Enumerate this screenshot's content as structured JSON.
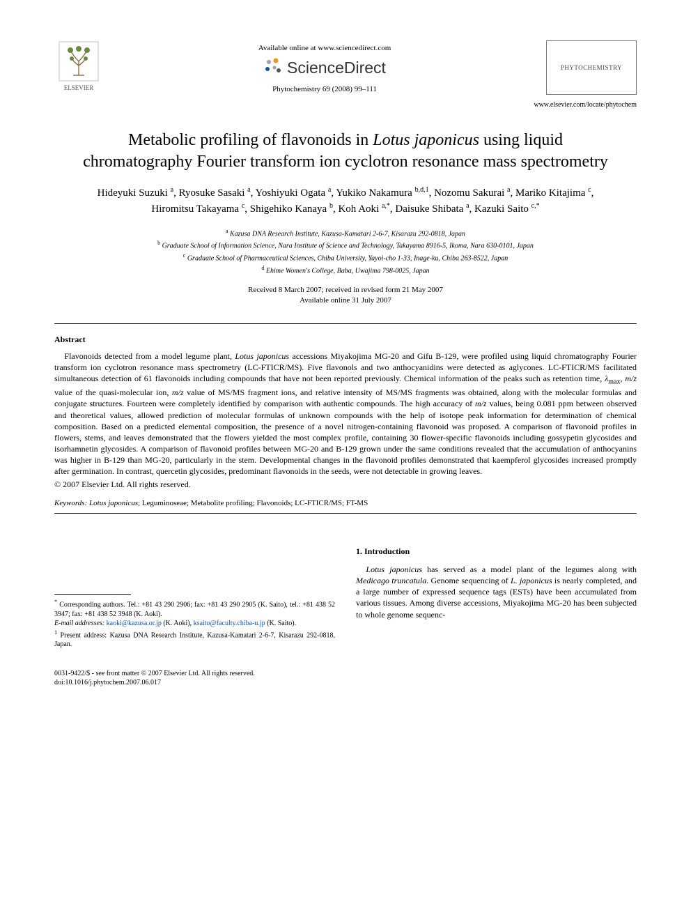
{
  "header": {
    "publisher_name": "ELSEVIER",
    "available_online": "Available online at www.sciencedirect.com",
    "sciencedirect": "ScienceDirect",
    "journal_ref": "Phytochemistry 69 (2008) 99–111",
    "journal_box": "PHYTOCHEMISTRY",
    "locate_url": "www.elsevier.com/locate/phytochem",
    "colors": {
      "elsevier_orange": "#e8791a",
      "sd_dot_orange": "#f7941d",
      "sd_dot_blue": "#1a4fa3",
      "sd_dot_grey": "#9aa0a6",
      "text": "#000000",
      "link": "#1a4fa3"
    }
  },
  "title": {
    "pre": "Metabolic profiling of flavonoids in ",
    "italic": "Lotus japonicus",
    "post": " using liquid chromatography Fourier transform ion cyclotron resonance mass spectrometry"
  },
  "authors_html": "Hideyuki Suzuki <sup>a</sup>, Ryosuke Sasaki <sup>a</sup>, Yoshiyuki Ogata <sup>a</sup>, Yukiko Nakamura <sup>b,d,1</sup>, Nozomu Sakurai <sup>a</sup>, Mariko Kitajima <sup>c</sup>, Hiromitsu Takayama <sup>c</sup>, Shigehiko Kanaya <sup>b</sup>, Koh Aoki <sup>a,*</sup>, Daisuke Shibata <sup>a</sup>, Kazuki Saito <sup>c,*</sup>",
  "affiliations": {
    "a": "Kazusa DNA Research Institute, Kazusa-Kamatari 2-6-7, Kisarazu 292-0818, Japan",
    "b": "Graduate School of Information Science, Nara Institute of Science and Technology, Takayama 8916-5, Ikoma, Nara 630-0101, Japan",
    "c": "Graduate School of Pharmaceutical Sciences, Chiba University, Yayoi-cho 1-33, Inage-ku, Chiba 263-8522, Japan",
    "d": "Ehime Women's College, Baba, Uwajima 798-0025, Japan"
  },
  "dates": {
    "received": "Received 8 March 2007; received in revised form 21 May 2007",
    "online": "Available online 31 July 2007"
  },
  "abstract": {
    "heading": "Abstract",
    "body_html": "Flavonoids detected from a model legume plant, <span class=\"italic\">Lotus japonicus</span> accessions Miyakojima MG-20 and Gifu B-129, were profiled using liquid chromatography Fourier transform ion cyclotron resonance mass spectrometry (LC-FTICR/MS). Five flavonols and two anthocyanidins were detected as aglycones. LC-FTICR/MS facilitated simultaneous detection of 61 flavonoids including compounds that have not been reported previously. Chemical information of the peaks such as retention time, <span class=\"italic\">λ</span><sub>max</sub>, <span class=\"italic\">m/z</span> value of the quasi-molecular ion, <span class=\"italic\">m/z</span> value of MS/MS fragment ions, and relative intensity of MS/MS fragments was obtained, along with the molecular formulas and conjugate structures. Fourteen were completely identified by comparison with authentic compounds. The high accuracy of <span class=\"italic\">m/z</span> values, being 0.081 ppm between observed and theoretical values, allowed prediction of molecular formulas of unknown compounds with the help of isotope peak information for determination of chemical composition. Based on a predicted elemental composition, the presence of a novel nitrogen-containing flavonoid was proposed. A comparison of flavonoid profiles in flowers, stems, and leaves demonstrated that the flowers yielded the most complex profile, containing 30 flower-specific flavonoids including gossypetin glycosides and isorhamnetin glycosides. A comparison of flavonoid profiles between MG-20 and B-129 grown under the same conditions revealed that the accumulation of anthocyanins was higher in B-129 than MG-20, particularly in the stem. Developmental changes in the flavonoid profiles demonstrated that kaempferol glycosides increased promptly after germination. In contrast, quercetin glycosides, predominant flavonoids in the seeds, were not detectable in growing leaves.",
    "copyright": "© 2007 Elsevier Ltd. All rights reserved."
  },
  "keywords": {
    "label": "Keywords:",
    "text_html": " <span class=\"italic\">Lotus japonicus</span>; Leguminoseae; Metabolite profiling; Flavonoids; LC-FTICR/MS; FT-MS"
  },
  "footnotes": {
    "corr": "Corresponding authors. Tel.: +81 43 290 2906; fax: +81 43 290 2905 (K. Saito), tel.: +81 438 52 3947; fax: +81 438 52 3948 (K. Aoki).",
    "email_label": "E-mail addresses:",
    "email1": "kaoki@kazusa.or.jp",
    "email1_who": " (K. Aoki), ",
    "email2": "ksaito@faculty.chiba-u.jp",
    "email2_who": " (K. Saito).",
    "present": "Present address: Kazusa DNA Research Institute, Kazusa-Kamatari 2-6-7, Kisarazu 292-0818, Japan."
  },
  "intro": {
    "heading": "1. Introduction",
    "body_html": "<span class=\"italic\">Lotus japonicus</span> has served as a model plant of the legumes along with <span class=\"italic\">Medicago truncatula</span>. Genome sequencing of <span class=\"italic\">L. japonicus</span> is nearly completed, and a large number of expressed sequence tags (ESTs) have been accumulated from various tissues. Among diverse accessions, Miyakojima MG-20 has been subjected to whole genome sequenc-"
  },
  "footer": {
    "issn": "0031-9422/$ - see front matter © 2007 Elsevier Ltd. All rights reserved.",
    "doi": "doi:10.1016/j.phytochem.2007.06.017"
  }
}
